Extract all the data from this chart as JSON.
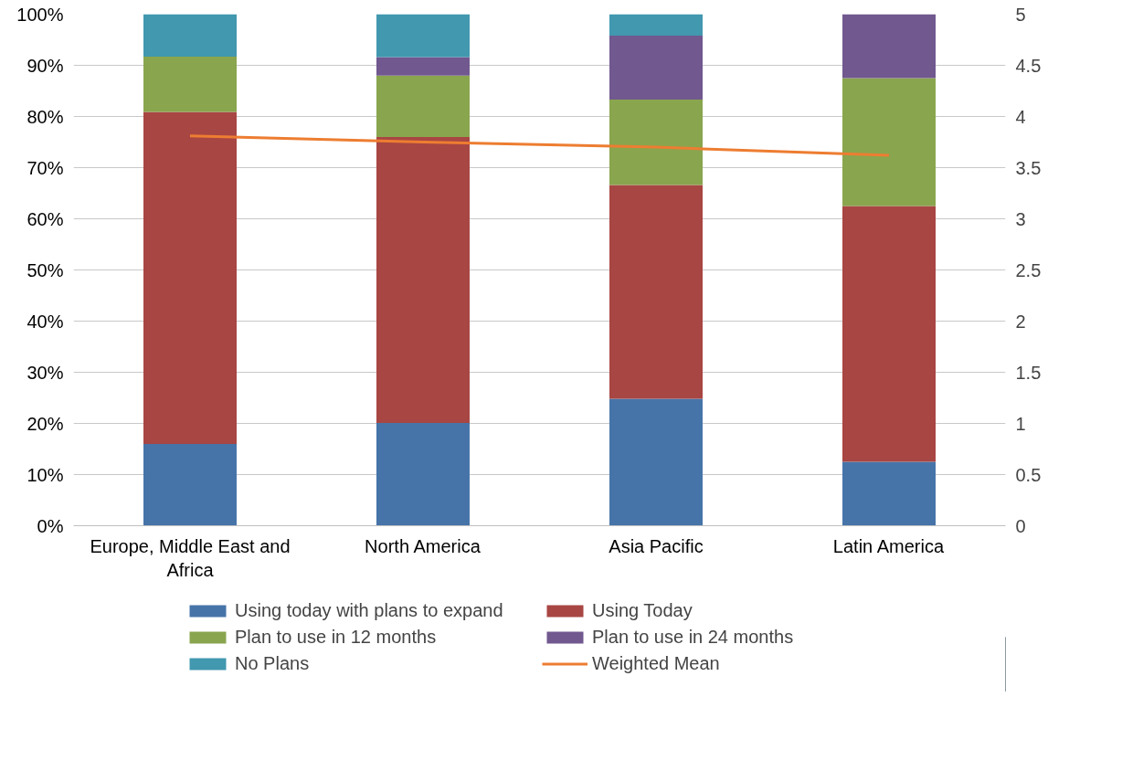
{
  "chart_data": {
    "type": "bar",
    "stacked": true,
    "categories": [
      "Europe, Middle East and Africa",
      "North America",
      "Asia Pacific",
      "Latin America"
    ],
    "series": [
      {
        "name": "Using today with plans to expand",
        "color": "#4674a9",
        "values": [
          16.0,
          20.1,
          24.8,
          12.5
        ]
      },
      {
        "name": "Using Today",
        "color": "#a84643",
        "values": [
          64.9,
          55.9,
          41.8,
          50.0
        ]
      },
      {
        "name": "Plan to use in 12 months",
        "color": "#89a54e",
        "values": [
          10.8,
          12.0,
          16.7,
          25.0
        ]
      },
      {
        "name": "Plan to use in 24 months",
        "color": "#71588f",
        "values": [
          0,
          3.6,
          12.5,
          12.5
        ]
      },
      {
        "name": "No Plans",
        "color": "#4198af",
        "values": [
          8.3,
          8.4,
          4.2,
          0
        ]
      },
      {
        "name": "Weighted Mean",
        "color": "#ed7d31",
        "type": "line",
        "axis": "y2",
        "values": [
          3.81,
          3.75,
          3.7,
          3.62
        ]
      }
    ],
    "ylim": [
      0,
      100
    ],
    "yticks": [
      {
        "value": 0,
        "label": "0%"
      },
      {
        "value": 10,
        "label": "10%"
      },
      {
        "value": 20,
        "label": "20%"
      },
      {
        "value": 30,
        "label": "30%"
      },
      {
        "value": 40,
        "label": "40%"
      },
      {
        "value": 50,
        "label": "50%"
      },
      {
        "value": 60,
        "label": "60%"
      },
      {
        "value": 70,
        "label": "70%"
      },
      {
        "value": 80,
        "label": "80%"
      },
      {
        "value": 90,
        "label": "90%"
      },
      {
        "value": 100,
        "label": "100%"
      }
    ],
    "y2lim": [
      0,
      5
    ],
    "y2ticks": [
      0,
      0.5,
      1,
      1.5,
      2,
      2.5,
      3,
      3.5,
      4,
      4.5,
      5
    ],
    "grid": "y",
    "legend": "bottom"
  }
}
